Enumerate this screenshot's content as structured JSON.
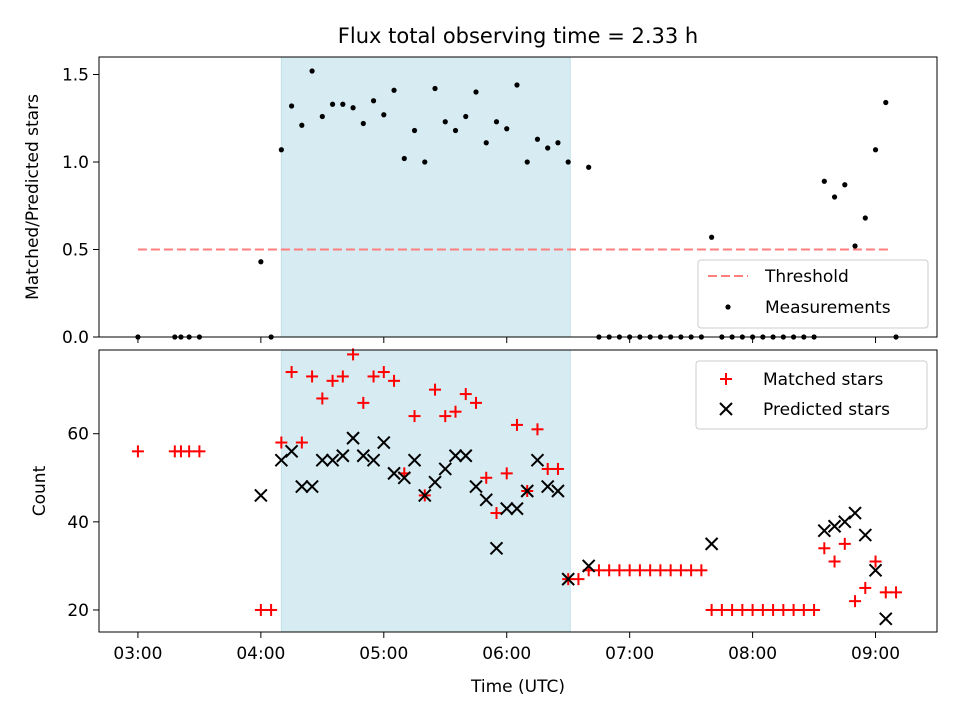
{
  "chart_data": [
    {
      "type": "scatter",
      "panel": "top",
      "title": "Flux total observing time = 2.33 h",
      "xlabel": "",
      "ylabel": "Matched/Predicted stars",
      "xlim": [
        "02:41",
        "09:30"
      ],
      "ylim": [
        0,
        1.6
      ],
      "yticks": [
        0.0,
        0.5,
        1.0,
        1.5
      ],
      "ytick_labels": [
        "0.0",
        "0.5",
        "1.0",
        "1.5"
      ],
      "shaded_region": {
        "x_start": "04:10",
        "x_end": "06:31",
        "color": "#add8e6"
      },
      "threshold": {
        "name": "Threshold",
        "value": 0.5,
        "x_start": "03:00",
        "x_end": "09:08",
        "color": "#ff7f7f",
        "style": "dashed"
      },
      "legend": {
        "placement": "lower-right",
        "entries": [
          "Threshold",
          "Measurements"
        ]
      },
      "series": [
        {
          "name": "Measurements",
          "color": "#000000",
          "marker": "dot",
          "points": [
            [
              "03:00",
              0.0
            ],
            [
              "03:18",
              0.0
            ],
            [
              "03:21",
              0.0
            ],
            [
              "03:25",
              0.0
            ],
            [
              "03:30",
              0.0
            ],
            [
              "04:00",
              0.43
            ],
            [
              "04:05",
              0.0
            ],
            [
              "04:10",
              1.07
            ],
            [
              "04:15",
              1.32
            ],
            [
              "04:20",
              1.21
            ],
            [
              "04:25",
              1.52
            ],
            [
              "04:30",
              1.26
            ],
            [
              "04:35",
              1.33
            ],
            [
              "04:40",
              1.33
            ],
            [
              "04:45",
              1.31
            ],
            [
              "04:50",
              1.22
            ],
            [
              "04:55",
              1.35
            ],
            [
              "05:00",
              1.27
            ],
            [
              "05:05",
              1.41
            ],
            [
              "05:10",
              1.02
            ],
            [
              "05:15",
              1.18
            ],
            [
              "05:20",
              1.0
            ],
            [
              "05:25",
              1.42
            ],
            [
              "05:30",
              1.23
            ],
            [
              "05:35",
              1.18
            ],
            [
              "05:40",
              1.26
            ],
            [
              "05:45",
              1.4
            ],
            [
              "05:50",
              1.11
            ],
            [
              "05:55",
              1.23
            ],
            [
              "06:00",
              1.19
            ],
            [
              "06:05",
              1.44
            ],
            [
              "06:10",
              1.0
            ],
            [
              "06:15",
              1.13
            ],
            [
              "06:20",
              1.08
            ],
            [
              "06:25",
              1.11
            ],
            [
              "06:30",
              1.0
            ],
            [
              "06:40",
              0.97
            ],
            [
              "06:45",
              0.0
            ],
            [
              "06:50",
              0.0
            ],
            [
              "06:55",
              0.0
            ],
            [
              "07:00",
              0.0
            ],
            [
              "07:05",
              0.0
            ],
            [
              "07:10",
              0.0
            ],
            [
              "07:15",
              0.0
            ],
            [
              "07:20",
              0.0
            ],
            [
              "07:25",
              0.0
            ],
            [
              "07:30",
              0.0
            ],
            [
              "07:35",
              0.0
            ],
            [
              "07:40",
              0.57
            ],
            [
              "07:45",
              0.0
            ],
            [
              "07:50",
              0.0
            ],
            [
              "07:55",
              0.0
            ],
            [
              "08:00",
              0.0
            ],
            [
              "08:05",
              0.0
            ],
            [
              "08:10",
              0.0
            ],
            [
              "08:15",
              0.0
            ],
            [
              "08:20",
              0.0
            ],
            [
              "08:25",
              0.0
            ],
            [
              "08:30",
              0.0
            ],
            [
              "08:35",
              0.89
            ],
            [
              "08:40",
              0.8
            ],
            [
              "08:45",
              0.87
            ],
            [
              "08:50",
              0.52
            ],
            [
              "08:55",
              0.68
            ],
            [
              "09:00",
              1.07
            ],
            [
              "09:05",
              1.34
            ],
            [
              "09:10",
              0.0
            ]
          ]
        }
      ]
    },
    {
      "type": "scatter",
      "panel": "bottom",
      "xlabel": "Time (UTC)",
      "ylabel": "Count",
      "xlim": [
        "02:41",
        "09:30"
      ],
      "ylim": [
        15,
        79
      ],
      "xticks": [
        "03:00",
        "04:00",
        "05:00",
        "06:00",
        "07:00",
        "08:00",
        "09:00"
      ],
      "yticks": [
        20,
        40,
        60
      ],
      "shaded_region": {
        "x_start": "04:10",
        "x_end": "06:31",
        "color": "#add8e6"
      },
      "legend": {
        "placement": "upper-right",
        "entries": [
          "Matched stars",
          "Predicted stars"
        ]
      },
      "series": [
        {
          "name": "Matched stars",
          "color": "#ff0000",
          "marker": "plus",
          "points": [
            [
              "03:00",
              56
            ],
            [
              "03:18",
              56
            ],
            [
              "03:21",
              56
            ],
            [
              "03:25",
              56
            ],
            [
              "03:30",
              56
            ],
            [
              "04:00",
              20
            ],
            [
              "04:05",
              20
            ],
            [
              "04:10",
              58
            ],
            [
              "04:15",
              74
            ],
            [
              "04:20",
              58
            ],
            [
              "04:25",
              73
            ],
            [
              "04:30",
              68
            ],
            [
              "04:35",
              72
            ],
            [
              "04:40",
              73
            ],
            [
              "04:45",
              78
            ],
            [
              "04:50",
              67
            ],
            [
              "04:55",
              73
            ],
            [
              "05:00",
              74
            ],
            [
              "05:05",
              72
            ],
            [
              "05:10",
              51
            ],
            [
              "05:15",
              64
            ],
            [
              "05:20",
              46
            ],
            [
              "05:25",
              70
            ],
            [
              "05:30",
              64
            ],
            [
              "05:35",
              65
            ],
            [
              "05:40",
              69
            ],
            [
              "05:45",
              67
            ],
            [
              "05:50",
              50
            ],
            [
              "05:55",
              42
            ],
            [
              "06:00",
              51
            ],
            [
              "06:05",
              62
            ],
            [
              "06:10",
              47
            ],
            [
              "06:15",
              61
            ],
            [
              "06:20",
              52
            ],
            [
              "06:25",
              52
            ],
            [
              "06:30",
              27
            ],
            [
              "06:35",
              27
            ],
            [
              "06:40",
              29
            ],
            [
              "06:45",
              29
            ],
            [
              "06:50",
              29
            ],
            [
              "06:55",
              29
            ],
            [
              "07:00",
              29
            ],
            [
              "07:05",
              29
            ],
            [
              "07:10",
              29
            ],
            [
              "07:15",
              29
            ],
            [
              "07:20",
              29
            ],
            [
              "07:25",
              29
            ],
            [
              "07:30",
              29
            ],
            [
              "07:35",
              29
            ],
            [
              "07:40",
              20
            ],
            [
              "07:45",
              20
            ],
            [
              "07:50",
              20
            ],
            [
              "07:55",
              20
            ],
            [
              "08:00",
              20
            ],
            [
              "08:05",
              20
            ],
            [
              "08:10",
              20
            ],
            [
              "08:15",
              20
            ],
            [
              "08:20",
              20
            ],
            [
              "08:25",
              20
            ],
            [
              "08:30",
              20
            ],
            [
              "08:35",
              34
            ],
            [
              "08:40",
              31
            ],
            [
              "08:45",
              35
            ],
            [
              "08:50",
              22
            ],
            [
              "08:55",
              25
            ],
            [
              "09:00",
              31
            ],
            [
              "09:05",
              24
            ],
            [
              "09:10",
              24
            ]
          ]
        },
        {
          "name": "Predicted stars",
          "color": "#000000",
          "marker": "x",
          "points": [
            [
              "04:00",
              46
            ],
            [
              "04:10",
              54
            ],
            [
              "04:15",
              56
            ],
            [
              "04:20",
              48
            ],
            [
              "04:25",
              48
            ],
            [
              "04:30",
              54
            ],
            [
              "04:35",
              54
            ],
            [
              "04:40",
              55
            ],
            [
              "04:45",
              59
            ],
            [
              "04:50",
              55
            ],
            [
              "04:55",
              54
            ],
            [
              "05:00",
              58
            ],
            [
              "05:05",
              51
            ],
            [
              "05:10",
              50
            ],
            [
              "05:15",
              54
            ],
            [
              "05:20",
              46
            ],
            [
              "05:25",
              49
            ],
            [
              "05:30",
              52
            ],
            [
              "05:35",
              55
            ],
            [
              "05:40",
              55
            ],
            [
              "05:45",
              48
            ],
            [
              "05:50",
              45
            ],
            [
              "05:55",
              34
            ],
            [
              "06:00",
              43
            ],
            [
              "06:05",
              43
            ],
            [
              "06:10",
              47
            ],
            [
              "06:15",
              54
            ],
            [
              "06:20",
              48
            ],
            [
              "06:25",
              47
            ],
            [
              "06:30",
              27
            ],
            [
              "06:40",
              30
            ],
            [
              "07:40",
              35
            ],
            [
              "08:35",
              38
            ],
            [
              "08:40",
              39
            ],
            [
              "08:45",
              40
            ],
            [
              "08:50",
              42
            ],
            [
              "08:55",
              37
            ],
            [
              "09:00",
              29
            ],
            [
              "09:05",
              18
            ]
          ]
        }
      ]
    }
  ]
}
